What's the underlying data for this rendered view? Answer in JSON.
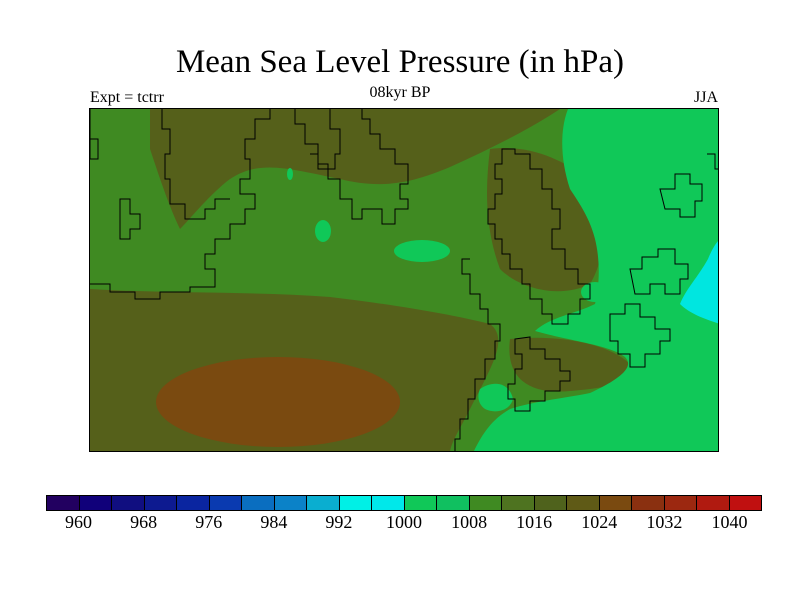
{
  "title": "Mean Sea Level Pressure (in hPa)",
  "subtitle": "08kyr BP",
  "experiment_label": "Expt = tctrr",
  "season_label": "JJA",
  "colorbar": {
    "colors": [
      "#220060",
      "#10007a",
      "#100e80",
      "#0d1a90",
      "#0a25a0",
      "#0a3ab0",
      "#0a6ec0",
      "#0b82c8",
      "#0aaed0",
      "#00f0e6",
      "#00e8ea",
      "#10c858",
      "#10c060",
      "#3f8a22",
      "#4e7320",
      "#4f621c",
      "#5f5a16",
      "#7a4a10",
      "#8a3010",
      "#9c2810",
      "#b01a10",
      "#c01010"
    ],
    "tick_labels": [
      "960",
      "968",
      "976",
      "984",
      "992",
      "1000",
      "1008",
      "1016",
      "1024",
      "1032",
      "1040"
    ]
  },
  "map_colors": {
    "base": "#3f8a22",
    "mid_high": "#55601a",
    "high": "#7a4a10",
    "low": "#10c858",
    "lowest": "#00e6e0",
    "coast": "#000000"
  }
}
